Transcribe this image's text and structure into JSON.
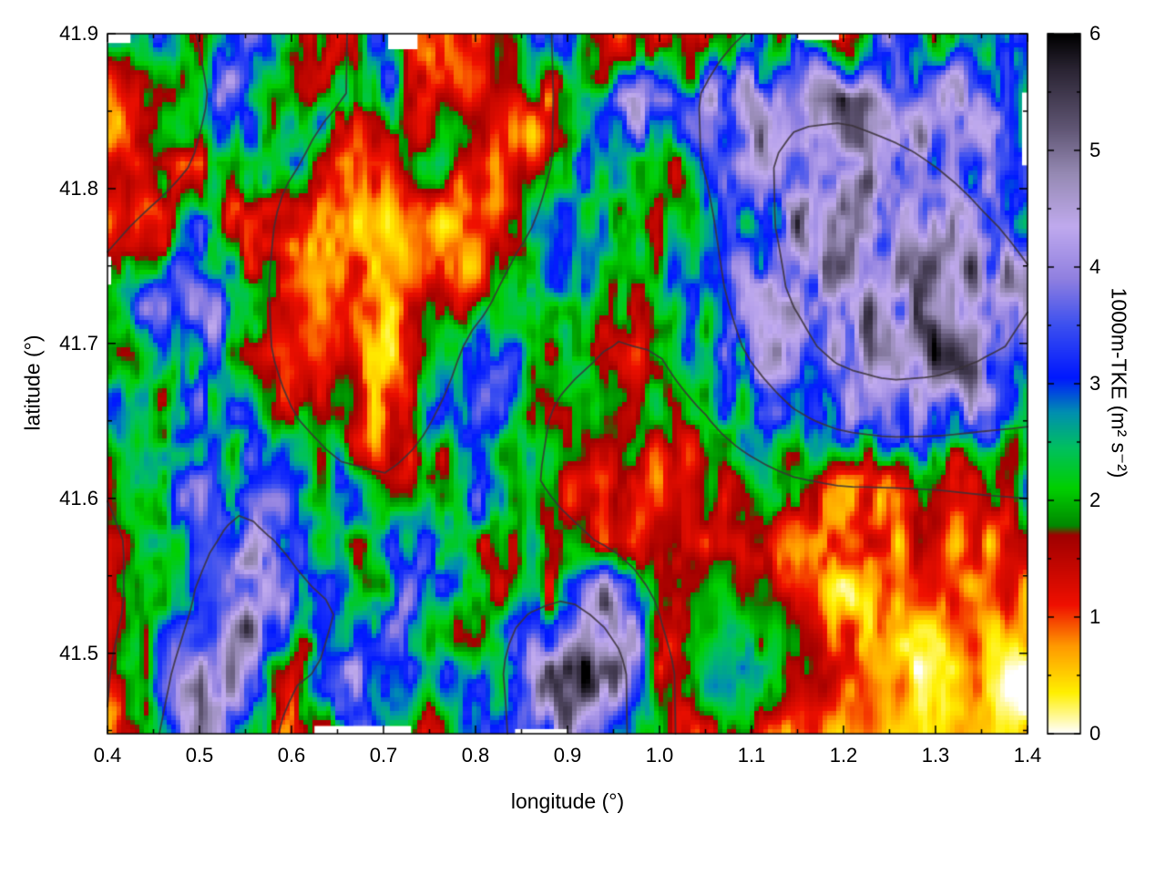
{
  "chart_data": {
    "type": "heatmap",
    "title": "",
    "xlabel": "longitude (°)",
    "ylabel": "latitude (°)",
    "colorbar_label": "1000m-TKE (m² s⁻²)",
    "x_range": [
      0.4,
      1.4
    ],
    "y_range": [
      41.448,
      41.9
    ],
    "x_ticks": [
      0.4,
      0.5,
      0.6,
      0.7,
      0.8,
      0.9,
      1.0,
      1.1,
      1.2,
      1.3,
      1.4
    ],
    "y_ticks": [
      41.5,
      41.6,
      41.7,
      41.8,
      41.9
    ],
    "colorbar_range": [
      0,
      6
    ],
    "colorbar_ticks": [
      0,
      1,
      2,
      3,
      4,
      5,
      6
    ],
    "palette": [
      [
        0.0,
        "#ffffff"
      ],
      [
        0.35,
        "#fff000"
      ],
      [
        0.75,
        "#ff9900"
      ],
      [
        1.1,
        "#f01000"
      ],
      [
        1.7,
        "#a00000"
      ],
      [
        1.78,
        "#008800"
      ],
      [
        2.1,
        "#00d000"
      ],
      [
        2.45,
        "#00c060"
      ],
      [
        2.75,
        "#0090b0"
      ],
      [
        3.05,
        "#0018ff"
      ],
      [
        3.5,
        "#3c50f0"
      ],
      [
        3.9,
        "#9080e0"
      ],
      [
        4.35,
        "#c0aaee"
      ],
      [
        4.8,
        "#968ab4"
      ],
      [
        5.2,
        "#5f5573"
      ],
      [
        5.7,
        "#2a2433"
      ],
      [
        6.0,
        "#000000"
      ]
    ],
    "grid": {
      "lon_start": 0.4,
      "lon_step": 0.05,
      "lat_start": 41.9,
      "lat_step": -0.04,
      "values": [
        [
          1.5,
          2.5,
          1.2,
          3.0,
          2.0,
          1.2,
          2.5,
          1.2,
          1.0,
          2.0,
          2.8,
          1.2,
          2.2,
          1.5,
          3.0,
          2.2,
          1.4,
          2.8,
          2.0,
          3.2,
          3.0
        ],
        [
          1.0,
          1.3,
          2.2,
          3.0,
          2.0,
          2.5,
          3.0,
          1.3,
          1.2,
          1.5,
          2.2,
          3.0,
          3.8,
          3.5,
          4.0,
          3.5,
          5.5,
          3.2,
          3.5,
          4.0,
          3.0
        ],
        [
          1.2,
          1.0,
          1.3,
          2.0,
          2.8,
          1.3,
          1.4,
          2.2,
          1.2,
          1.1,
          2.8,
          2.0,
          1.5,
          2.5,
          3.8,
          4.2,
          3.5,
          4.0,
          3.0,
          3.5,
          3.2
        ],
        [
          1.3,
          2.0,
          3.5,
          2.5,
          1.4,
          1.3,
          1.1,
          1.0,
          1.2,
          1.5,
          2.8,
          2.0,
          1.4,
          2.5,
          3.5,
          4.3,
          3.8,
          4.2,
          4.0,
          3.5,
          3.0
        ],
        [
          2.8,
          3.2,
          3.8,
          2.2,
          1.5,
          1.2,
          1.1,
          1.3,
          1.2,
          2.8,
          3.2,
          2.0,
          2.2,
          2.2,
          3.5,
          4.0,
          4.3,
          4.0,
          4.5,
          3.8,
          4.2
        ],
        [
          1.5,
          2.2,
          3.0,
          2.0,
          1.3,
          1.2,
          1.0,
          1.5,
          3.0,
          2.8,
          2.0,
          1.8,
          2.0,
          2.2,
          3.0,
          3.8,
          4.2,
          4.5,
          5.0,
          4.0,
          3.5
        ],
        [
          2.2,
          2.8,
          3.2,
          2.5,
          2.0,
          1.4,
          1.2,
          2.5,
          2.8,
          2.0,
          1.5,
          1.3,
          2.0,
          2.0,
          2.5,
          3.0,
          3.5,
          4.0,
          3.2,
          3.0,
          2.8
        ],
        [
          2.0,
          2.5,
          3.0,
          2.8,
          2.2,
          2.5,
          1.5,
          1.3,
          2.8,
          2.2,
          1.6,
          1.3,
          1.2,
          1.3,
          1.5,
          2.0,
          1.4,
          1.3,
          1.5,
          2.0,
          2.5
        ],
        [
          1.4,
          2.0,
          2.8,
          3.5,
          2.5,
          2.8,
          2.2,
          3.0,
          2.5,
          2.0,
          1.4,
          1.2,
          1.3,
          1.2,
          1.3,
          1.2,
          1.4,
          1.2,
          1.3,
          1.5,
          1.2
        ],
        [
          1.3,
          1.8,
          2.5,
          4.0,
          3.0,
          2.2,
          3.8,
          2.5,
          2.8,
          3.2,
          2.5,
          4.5,
          1.5,
          1.3,
          1.2,
          1.4,
          1.0,
          0.8,
          1.0,
          1.2,
          1.0
        ],
        [
          2.0,
          2.5,
          4.5,
          3.5,
          2.0,
          3.8,
          3.0,
          2.2,
          2.0,
          2.8,
          5.5,
          4.2,
          1.3,
          1.5,
          2.0,
          1.2,
          0.8,
          0.5,
          0.4,
          0.6,
          0.5
        ],
        [
          1.5,
          2.2,
          5.0,
          2.8,
          1.4,
          3.2,
          2.0,
          1.3,
          2.2,
          2.5,
          4.5,
          2.5,
          2.0,
          1.5,
          1.2,
          1.0,
          0.6,
          0.3,
          0.4,
          0.3,
          0.4
        ]
      ]
    },
    "contour_levels": [
      2.0,
      2.8,
      3.6
    ],
    "contour_color": "#3a3138",
    "missing_regions": [
      {
        "lon": [
          0.4,
          0.425
        ],
        "lat": [
          41.894,
          41.9
        ]
      },
      {
        "lon": [
          0.705,
          0.737
        ],
        "lat": [
          41.89,
          41.9
        ]
      },
      {
        "lon": [
          1.15,
          1.195
        ],
        "lat": [
          41.896,
          41.9
        ]
      },
      {
        "lon": [
          0.625,
          0.73
        ],
        "lat": [
          41.448,
          41.453
        ]
      },
      {
        "lon": [
          0.843,
          0.9
        ],
        "lat": [
          41.448,
          41.451
        ]
      },
      {
        "lon": [
          0.4,
          0.404
        ],
        "lat": [
          41.738,
          41.756
        ]
      },
      {
        "lon": [
          1.394,
          1.4
        ],
        "lat": [
          41.815,
          41.862
        ]
      }
    ],
    "grid_lines": false,
    "legend": "colorbar-right"
  }
}
